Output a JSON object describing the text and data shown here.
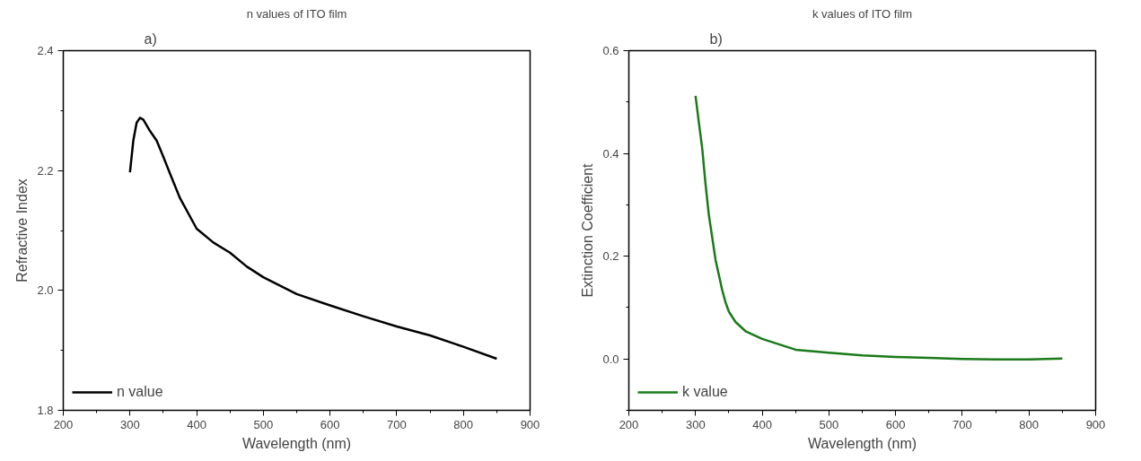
{
  "chart_data": [
    {
      "type": "line",
      "title": "n values of ITO film",
      "xlabel": "Wavelength (nm)",
      "ylabel": "Refractive Index",
      "annotations": [
        "a)"
      ],
      "xlim": [
        200,
        900
      ],
      "ylim": [
        1.8,
        2.4
      ],
      "xticks": [
        200,
        {
          "value": 250,
          "label": null
        },
        300,
        {
          "value": 350,
          "label": null
        },
        400,
        {
          "value": 450,
          "label": null
        },
        500,
        {
          "value": 550,
          "label": null
        },
        600,
        {
          "value": 650,
          "label": null
        },
        700,
        {
          "value": 750,
          "label": null
        },
        800,
        {
          "value": 850,
          "label": null
        },
        900
      ],
      "yticks": [
        {
          "value": 1.8,
          "label": "1.8"
        },
        {
          "value": 1.9,
          "label": null
        },
        {
          "value": 2.0,
          "label": "2.0"
        },
        {
          "value": 2.1,
          "label": null
        },
        {
          "value": 2.2,
          "label": "2.2"
        },
        {
          "value": 2.3,
          "label": null
        },
        {
          "value": 2.4,
          "label": "2.4"
        }
      ],
      "grid": false,
      "legend": "bottom left",
      "line_style": "solid",
      "series": [
        {
          "name": "n value",
          "color": "#000000",
          "x": [
            300,
            305,
            310,
            315,
            320,
            330,
            340,
            350,
            360,
            375,
            400,
            425,
            450,
            475,
            500,
            550,
            600,
            650,
            700,
            750,
            800,
            850
          ],
          "values": [
            2.197,
            2.25,
            2.28,
            2.288,
            2.285,
            2.266,
            2.25,
            2.223,
            2.195,
            2.154,
            2.103,
            2.08,
            2.063,
            2.04,
            2.022,
            1.994,
            1.975,
            1.957,
            1.94,
            1.925,
            1.906,
            1.886
          ]
        }
      ]
    },
    {
      "type": "line",
      "title": "k values of ITO film",
      "xlabel": "Wavelength (nm)",
      "ylabel": "Extinction Coefficient",
      "annotations": [
        "b)"
      ],
      "xlim": [
        200,
        900
      ],
      "ylim": [
        -0.1,
        0.6
      ],
      "xticks": [
        200,
        {
          "value": 250,
          "label": null
        },
        300,
        {
          "value": 350,
          "label": null
        },
        400,
        {
          "value": 450,
          "label": null
        },
        500,
        {
          "value": 550,
          "label": null
        },
        600,
        {
          "value": 650,
          "label": null
        },
        700,
        {
          "value": 750,
          "label": null
        },
        800,
        {
          "value": 850,
          "label": null
        },
        900
      ],
      "yticks": [
        {
          "value": -0.1,
          "label": null
        },
        {
          "value": 0.0,
          "label": "0.0"
        },
        {
          "value": 0.1,
          "label": null
        },
        {
          "value": 0.2,
          "label": "0.2"
        },
        {
          "value": 0.3,
          "label": null
        },
        {
          "value": 0.4,
          "label": "0.4"
        },
        {
          "value": 0.5,
          "label": null
        },
        {
          "value": 0.6,
          "label": "0.6"
        }
      ],
      "grid": false,
      "legend": "bottom left",
      "line_style": "solid",
      "series": [
        {
          "name": "k value",
          "color": "#1a7a1a",
          "x": [
            300,
            305,
            310,
            315,
            320,
            330,
            340,
            345,
            350,
            360,
            375,
            400,
            450,
            500,
            550,
            600,
            650,
            700,
            750,
            800,
            850
          ],
          "values": [
            0.512,
            0.46,
            0.41,
            0.34,
            0.28,
            0.193,
            0.134,
            0.11,
            0.092,
            0.072,
            0.054,
            0.039,
            0.018,
            0.012,
            0.007,
            0.004,
            0.002,
            0.0,
            -0.001,
            -0.001,
            0.001
          ]
        }
      ]
    }
  ]
}
